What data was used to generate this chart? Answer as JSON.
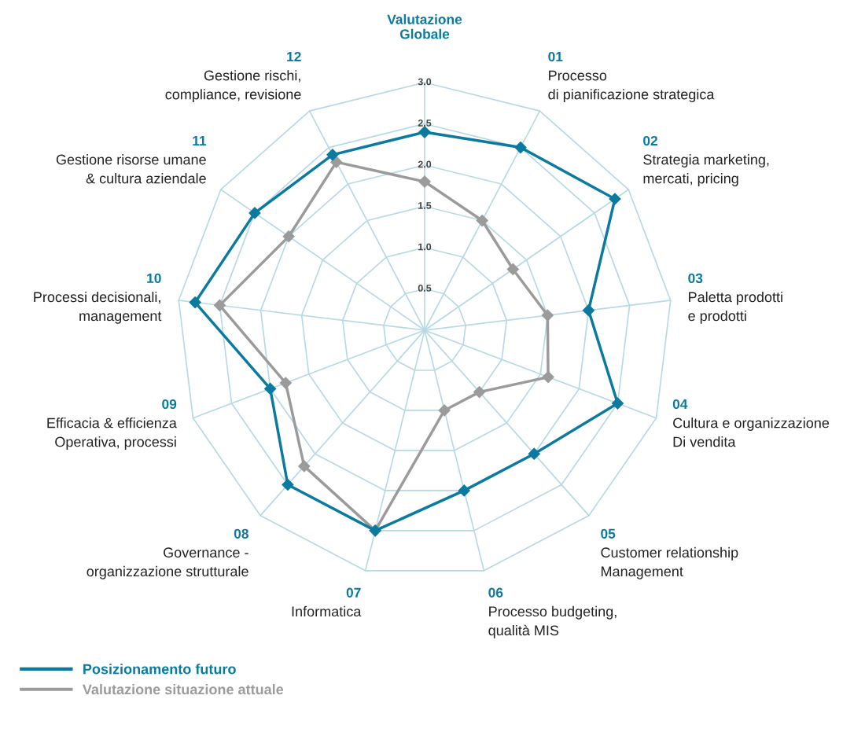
{
  "chart_data": {
    "type": "radar",
    "categories": [
      "Valutazione\nGlobale",
      "01\nProcesso\ndi pianificazione strategica",
      "02\nStrategia marketing,\nmercati, pricing",
      "03\nPaletta prodotti\ne prodotti",
      "04\nCultura e organizzazione\nDi vendita",
      "05\nCustomer relationship\nManagement",
      "06\nProcesso budgeting,\nqualità MIS",
      "07\nInformatica",
      "08\nGovernance -\norganizzazione strutturale",
      "09\nEfficacia & efficienza\nOperativa, processi",
      "10\nProcessi decisionali,\nmanagement",
      "11\nGestione risorse umane\n& cultura aziendale",
      "12\nGestione rischi,\ncompliance, revisione"
    ],
    "series": [
      {
        "name": "Posizionamento futuro",
        "color": "#0b7aa0",
        "values": [
          2.4,
          2.5,
          2.8,
          2.0,
          2.5,
          2.0,
          2.0,
          2.5,
          2.5,
          2.0,
          2.8,
          2.5,
          2.4
        ]
      },
      {
        "name": "Valutazione situazione attuale",
        "color": "#9b9b9b",
        "values": [
          1.8,
          1.5,
          1.3,
          1.5,
          1.6,
          1.0,
          1.0,
          2.5,
          2.2,
          1.8,
          2.5,
          2.0,
          2.3
        ]
      }
    ],
    "ylim": [
      0,
      3.0
    ],
    "yticks": [
      0.5,
      {
        "value": 1,
        "label": "1.0"
      },
      1.5,
      {
        "value": 2,
        "label": "2.0"
      },
      2.5,
      {
        "value": 3,
        "label": "3.0"
      }
    ],
    "marker": "diamond",
    "grid": true,
    "legend": "bottom left"
  }
}
